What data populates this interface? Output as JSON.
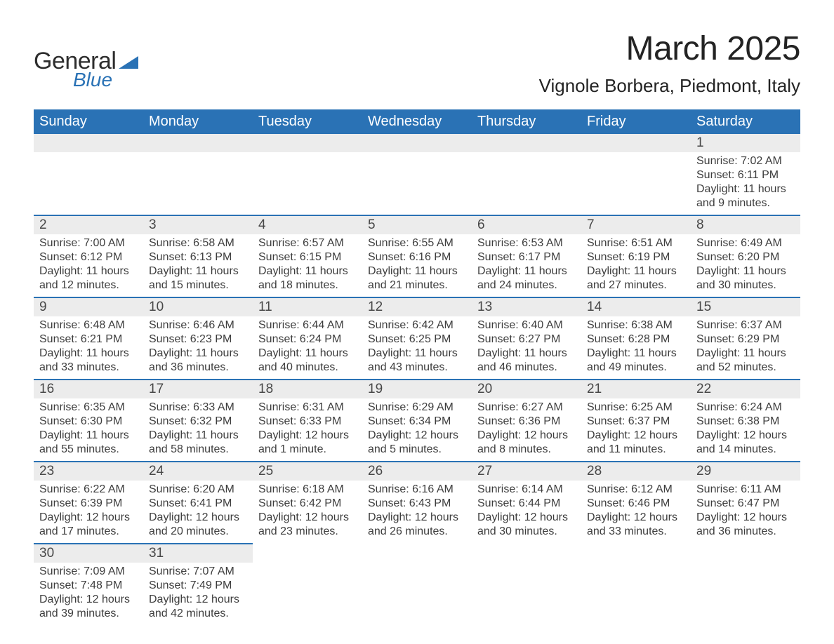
{
  "logo": {
    "word1": "General",
    "word2": "Blue",
    "triangle_color": "#2a72b5",
    "text_color": "#2d2d2d"
  },
  "header": {
    "title": "March 2025",
    "location": "Vignole Borbera, Piedmont, Italy"
  },
  "style": {
    "header_bg": "#2a72b5",
    "header_fg": "#ffffff",
    "daynum_bg": "#ececec",
    "row_border": "#2a72b5",
    "body_fg": "#3d3d3d",
    "page_bg": "#ffffff",
    "title_fontsize": 48,
    "location_fontsize": 26,
    "day_header_fontsize": 20,
    "daynum_fontsize": 19,
    "body_fontsize": 16
  },
  "day_headers": [
    "Sunday",
    "Monday",
    "Tuesday",
    "Wednesday",
    "Thursday",
    "Friday",
    "Saturday"
  ],
  "labels": {
    "sunrise": "Sunrise:",
    "sunset": "Sunset:",
    "daylight": "Daylight:"
  },
  "weeks": [
    [
      null,
      null,
      null,
      null,
      null,
      null,
      {
        "n": "1",
        "sunrise": "7:02 AM",
        "sunset": "6:11 PM",
        "daylight": "11 hours and 9 minutes."
      }
    ],
    [
      {
        "n": "2",
        "sunrise": "7:00 AM",
        "sunset": "6:12 PM",
        "daylight": "11 hours and 12 minutes."
      },
      {
        "n": "3",
        "sunrise": "6:58 AM",
        "sunset": "6:13 PM",
        "daylight": "11 hours and 15 minutes."
      },
      {
        "n": "4",
        "sunrise": "6:57 AM",
        "sunset": "6:15 PM",
        "daylight": "11 hours and 18 minutes."
      },
      {
        "n": "5",
        "sunrise": "6:55 AM",
        "sunset": "6:16 PM",
        "daylight": "11 hours and 21 minutes."
      },
      {
        "n": "6",
        "sunrise": "6:53 AM",
        "sunset": "6:17 PM",
        "daylight": "11 hours and 24 minutes."
      },
      {
        "n": "7",
        "sunrise": "6:51 AM",
        "sunset": "6:19 PM",
        "daylight": "11 hours and 27 minutes."
      },
      {
        "n": "8",
        "sunrise": "6:49 AM",
        "sunset": "6:20 PM",
        "daylight": "11 hours and 30 minutes."
      }
    ],
    [
      {
        "n": "9",
        "sunrise": "6:48 AM",
        "sunset": "6:21 PM",
        "daylight": "11 hours and 33 minutes."
      },
      {
        "n": "10",
        "sunrise": "6:46 AM",
        "sunset": "6:23 PM",
        "daylight": "11 hours and 36 minutes."
      },
      {
        "n": "11",
        "sunrise": "6:44 AM",
        "sunset": "6:24 PM",
        "daylight": "11 hours and 40 minutes."
      },
      {
        "n": "12",
        "sunrise": "6:42 AM",
        "sunset": "6:25 PM",
        "daylight": "11 hours and 43 minutes."
      },
      {
        "n": "13",
        "sunrise": "6:40 AM",
        "sunset": "6:27 PM",
        "daylight": "11 hours and 46 minutes."
      },
      {
        "n": "14",
        "sunrise": "6:38 AM",
        "sunset": "6:28 PM",
        "daylight": "11 hours and 49 minutes."
      },
      {
        "n": "15",
        "sunrise": "6:37 AM",
        "sunset": "6:29 PM",
        "daylight": "11 hours and 52 minutes."
      }
    ],
    [
      {
        "n": "16",
        "sunrise": "6:35 AM",
        "sunset": "6:30 PM",
        "daylight": "11 hours and 55 minutes."
      },
      {
        "n": "17",
        "sunrise": "6:33 AM",
        "sunset": "6:32 PM",
        "daylight": "11 hours and 58 minutes."
      },
      {
        "n": "18",
        "sunrise": "6:31 AM",
        "sunset": "6:33 PM",
        "daylight": "12 hours and 1 minute."
      },
      {
        "n": "19",
        "sunrise": "6:29 AM",
        "sunset": "6:34 PM",
        "daylight": "12 hours and 5 minutes."
      },
      {
        "n": "20",
        "sunrise": "6:27 AM",
        "sunset": "6:36 PM",
        "daylight": "12 hours and 8 minutes."
      },
      {
        "n": "21",
        "sunrise": "6:25 AM",
        "sunset": "6:37 PM",
        "daylight": "12 hours and 11 minutes."
      },
      {
        "n": "22",
        "sunrise": "6:24 AM",
        "sunset": "6:38 PM",
        "daylight": "12 hours and 14 minutes."
      }
    ],
    [
      {
        "n": "23",
        "sunrise": "6:22 AM",
        "sunset": "6:39 PM",
        "daylight": "12 hours and 17 minutes."
      },
      {
        "n": "24",
        "sunrise": "6:20 AM",
        "sunset": "6:41 PM",
        "daylight": "12 hours and 20 minutes."
      },
      {
        "n": "25",
        "sunrise": "6:18 AM",
        "sunset": "6:42 PM",
        "daylight": "12 hours and 23 minutes."
      },
      {
        "n": "26",
        "sunrise": "6:16 AM",
        "sunset": "6:43 PM",
        "daylight": "12 hours and 26 minutes."
      },
      {
        "n": "27",
        "sunrise": "6:14 AM",
        "sunset": "6:44 PM",
        "daylight": "12 hours and 30 minutes."
      },
      {
        "n": "28",
        "sunrise": "6:12 AM",
        "sunset": "6:46 PM",
        "daylight": "12 hours and 33 minutes."
      },
      {
        "n": "29",
        "sunrise": "6:11 AM",
        "sunset": "6:47 PM",
        "daylight": "12 hours and 36 minutes."
      }
    ],
    [
      {
        "n": "30",
        "sunrise": "7:09 AM",
        "sunset": "7:48 PM",
        "daylight": "12 hours and 39 minutes."
      },
      {
        "n": "31",
        "sunrise": "7:07 AM",
        "sunset": "7:49 PM",
        "daylight": "12 hours and 42 minutes."
      },
      null,
      null,
      null,
      null,
      null
    ]
  ]
}
